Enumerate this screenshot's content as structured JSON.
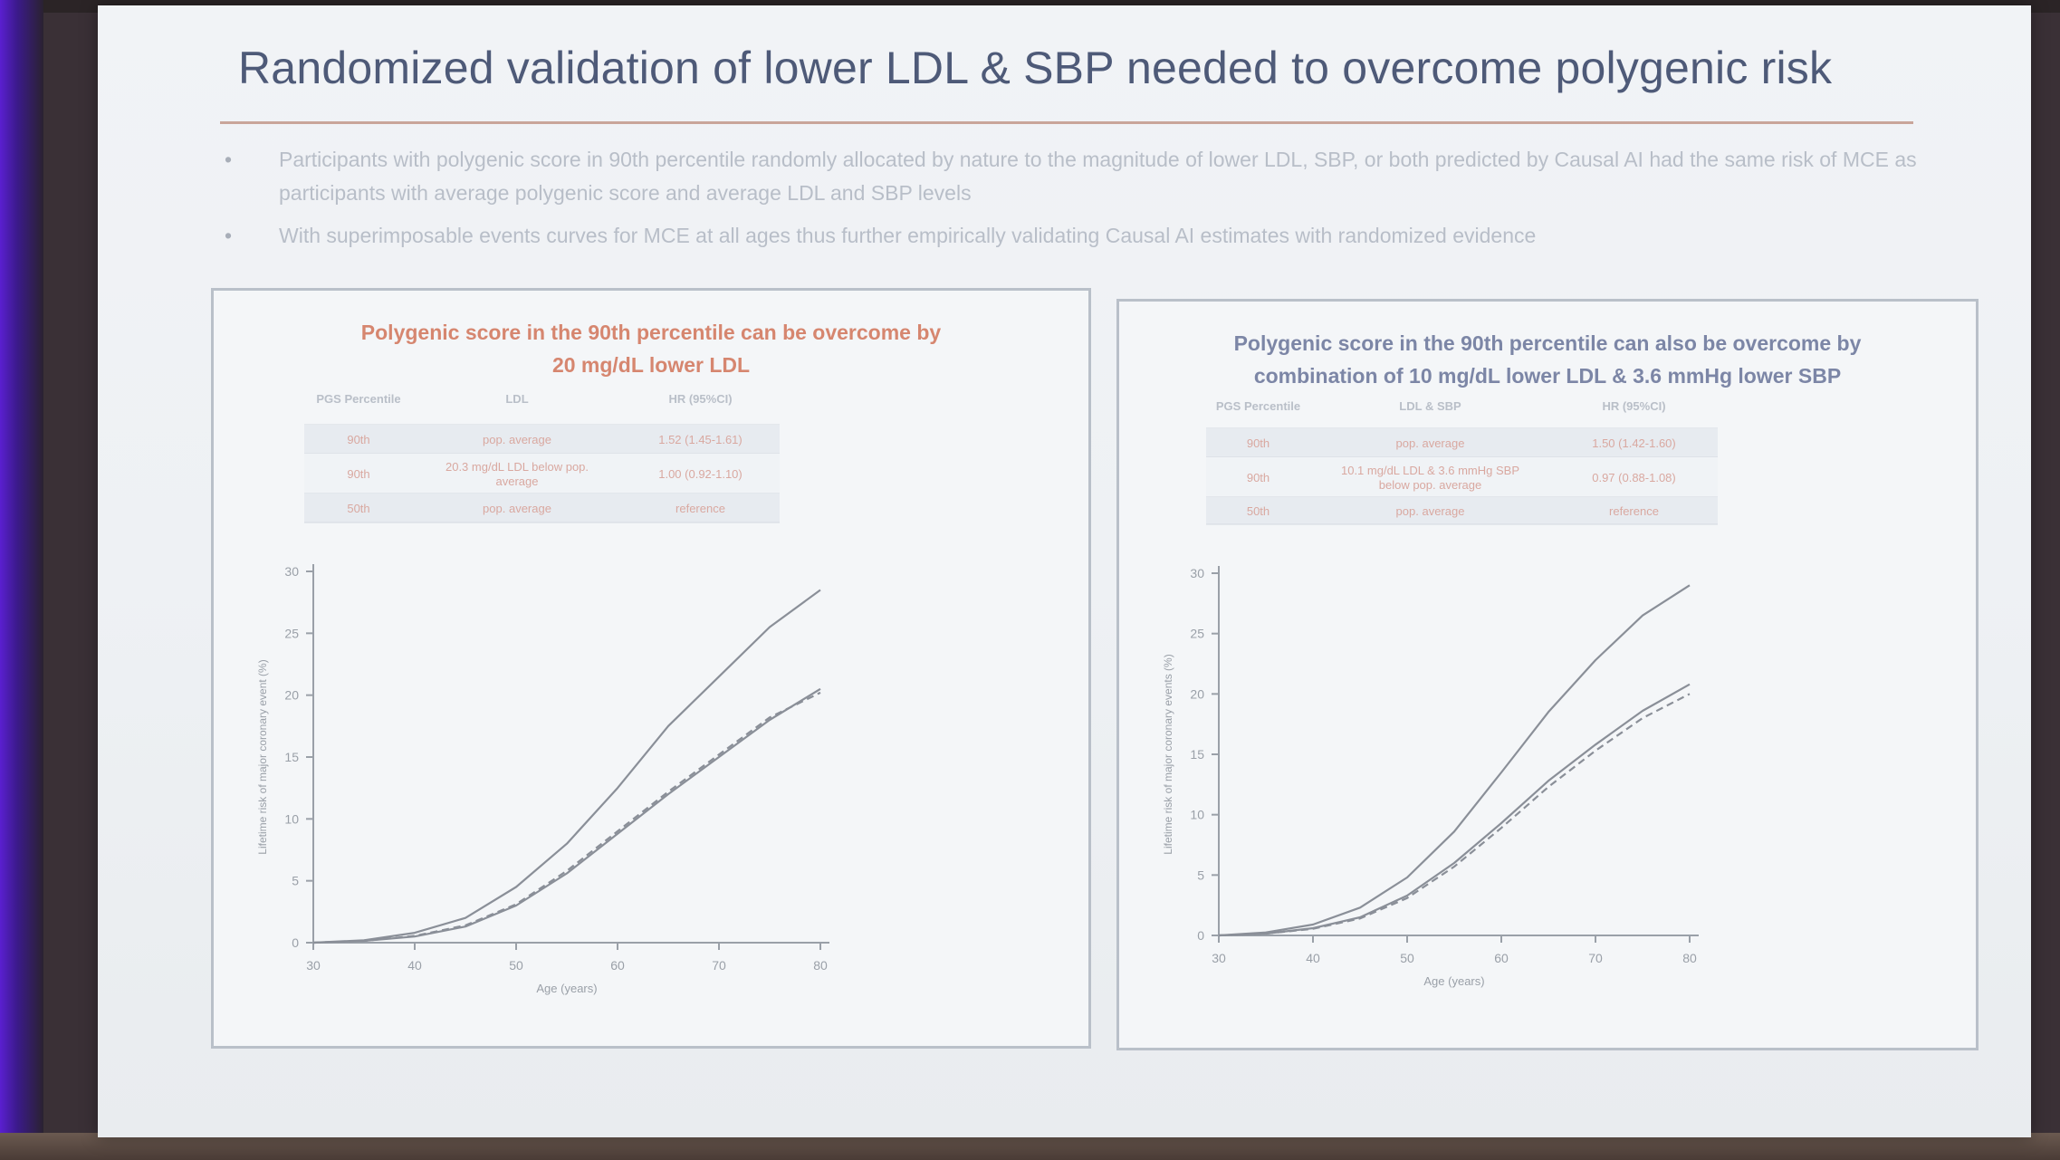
{
  "slide": {
    "title": "Randomized validation of lower LDL & SBP needed to overcome polygenic risk",
    "bullets": [
      "Participants with polygenic score in 90th percentile randomly allocated by nature to the magnitude of lower LDL, SBP, or both predicted by Causal AI had the same risk of MCE as participants with average polygenic score and average LDL and SBP levels",
      "With superimposable events curves for MCE at all ages thus further empirically validating Causal AI estimates with randomized evidence"
    ],
    "bullet_glyph": "•"
  },
  "colors": {
    "title": "#4e5a78",
    "rule": "#c9a59a",
    "left_panel_title": "#d6866f",
    "right_panel_title": "#7c86a6",
    "curve": "#8a8f98",
    "table_pink": "#d9a8a0"
  },
  "chart_data": [
    {
      "type": "line",
      "title": "Polygenic score in the 90th percentile can be overcome by 20 mg/dL lower LDL",
      "title_lines": [
        "Polygenic score in the 90th percentile can be overcome by",
        "20 mg/dL lower LDL"
      ],
      "xlabel": "Age (years)",
      "ylabel": "Lifetime risk of major coronary event (%)",
      "xlim": [
        30,
        80
      ],
      "ylim": [
        0,
        30
      ],
      "xticks": [
        "30",
        "40",
        "50",
        "60",
        "70",
        "80"
      ],
      "yticks": [
        "0",
        "5",
        "10",
        "15",
        "20",
        "25",
        "30"
      ],
      "grid": false,
      "series": [
        {
          "x": [
            30,
            35,
            40,
            45,
            50,
            55,
            60,
            65,
            70,
            75,
            80
          ],
          "values": [
            0,
            0.2,
            0.8,
            2.0,
            4.5,
            8.0,
            12.5,
            17.5,
            21.5,
            25.5,
            28.5
          ]
        },
        {
          "x": [
            30,
            35,
            40,
            45,
            50,
            55,
            60,
            65,
            70,
            75,
            80
          ],
          "values": [
            0,
            0.15,
            0.5,
            1.3,
            3.0,
            5.6,
            8.8,
            12.0,
            15.0,
            18.0,
            20.5
          ],
          "style": "solid"
        },
        {
          "x": [
            30,
            35,
            40,
            45,
            50,
            55,
            60,
            65,
            70,
            75,
            80
          ],
          "values": [
            0,
            0.15,
            0.55,
            1.4,
            3.1,
            5.8,
            9.0,
            12.2,
            15.2,
            18.2,
            20.2
          ],
          "style": "dashed"
        }
      ],
      "table": {
        "headers": [
          "PGS Percentile",
          "LDL",
          "HR (95%CI)"
        ],
        "rows": [
          [
            "90th",
            "pop. average",
            "1.52 (1.45-1.61)"
          ],
          [
            "90th",
            "20.3 mg/dL LDL below pop. average",
            "1.00 (0.92-1.10)"
          ],
          [
            "50th",
            "pop. average",
            "reference"
          ]
        ]
      }
    },
    {
      "type": "line",
      "title": "Polygenic score in the 90th percentile can also be overcome by combination of 10 mg/dL lower LDL & 3.6 mmHg lower SBP",
      "title_lines": [
        "Polygenic score in the 90th percentile can also be overcome by",
        "combination of 10 mg/dL lower LDL & 3.6 mmHg lower SBP"
      ],
      "xlabel": "Age (years)",
      "ylabel": "Lifetime risk of major coronary events (%)",
      "xlim": [
        30,
        80
      ],
      "ylim": [
        0,
        30
      ],
      "xticks": [
        "30",
        "40",
        "50",
        "60",
        "70",
        "80"
      ],
      "yticks": [
        "0",
        "5",
        "10",
        "15",
        "20",
        "25",
        "30"
      ],
      "grid": false,
      "series": [
        {
          "x": [
            30,
            35,
            40,
            45,
            50,
            55,
            60,
            65,
            70,
            75,
            80
          ],
          "values": [
            0,
            0.25,
            0.9,
            2.3,
            4.8,
            8.6,
            13.5,
            18.5,
            22.8,
            26.5,
            29.0
          ]
        },
        {
          "x": [
            30,
            35,
            40,
            45,
            50,
            55,
            60,
            65,
            70,
            75,
            80
          ],
          "values": [
            0,
            0.15,
            0.6,
            1.5,
            3.3,
            6.0,
            9.3,
            12.8,
            15.8,
            18.6,
            20.8
          ],
          "style": "solid"
        },
        {
          "x": [
            30,
            35,
            40,
            45,
            50,
            55,
            60,
            65,
            70,
            75,
            80
          ],
          "values": [
            0,
            0.15,
            0.55,
            1.4,
            3.1,
            5.7,
            8.9,
            12.3,
            15.3,
            18.0,
            20.0
          ],
          "style": "dashed"
        }
      ],
      "table": {
        "headers": [
          "PGS Percentile",
          "LDL & SBP",
          "HR (95%CI)"
        ],
        "rows": [
          [
            "90th",
            "pop. average",
            "1.50 (1.42-1.60)"
          ],
          [
            "90th",
            "10.1 mg/dL LDL & 3.6 mmHg SBP below pop. average",
            "0.97 (0.88-1.08)"
          ],
          [
            "50th",
            "pop. average",
            "reference"
          ]
        ]
      }
    }
  ]
}
